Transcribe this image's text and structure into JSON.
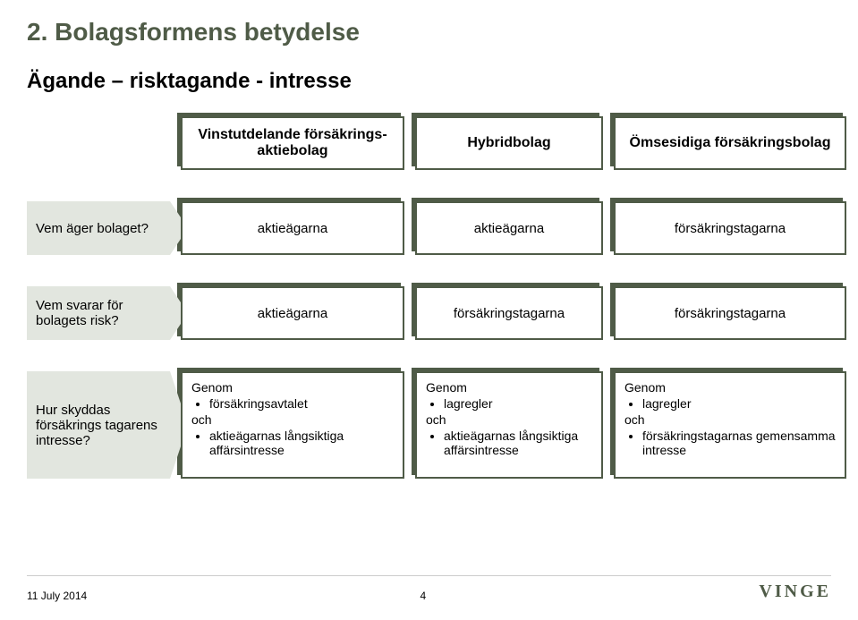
{
  "colors": {
    "shadow": "#4f5b47",
    "border": "#4f5b47",
    "arrow_bg": "#e2e6df",
    "title_color": "#4f5b47",
    "text_color": "#000000",
    "background": "#ffffff"
  },
  "title": "2. Bolagsformens betydelse",
  "subtitle": "Ägande – risktagande - intresse",
  "headers": {
    "col1": "Vinstutdelande försäkrings-aktiebolag",
    "col2": "Hybridbolag",
    "col3": "Ömsesidiga försäkringsbolag"
  },
  "rows": [
    {
      "question": "Vem äger bolaget?",
      "cells": [
        "aktieägarna",
        "aktieägarna",
        "försäkringstagarna"
      ]
    },
    {
      "question": "Vem svarar för bolagets risk?",
      "cells": [
        "aktieägarna",
        "försäkringstagarna",
        "försäkringstagarna"
      ]
    },
    {
      "question": "Hur skyddas försäkrings tagarens intresse?",
      "lists": [
        {
          "lead": "Genom",
          "items1": [
            "försäkringsavtalet"
          ],
          "mid": "och",
          "items2": [
            "aktieägarnas långsiktiga affärsintresse"
          ]
        },
        {
          "lead": "Genom",
          "items1": [
            "lagregler"
          ],
          "mid": "och",
          "items2": [
            "aktieägarnas långsiktiga affärsintresse"
          ]
        },
        {
          "lead": "Genom",
          "items1": [
            "lagregler"
          ],
          "mid": "och",
          "items2": [
            "försäkringstagarnas gemensamma intresse"
          ]
        }
      ]
    }
  ],
  "footer": {
    "date": "11 July 2014",
    "page": "4",
    "logo": "VINGE"
  }
}
